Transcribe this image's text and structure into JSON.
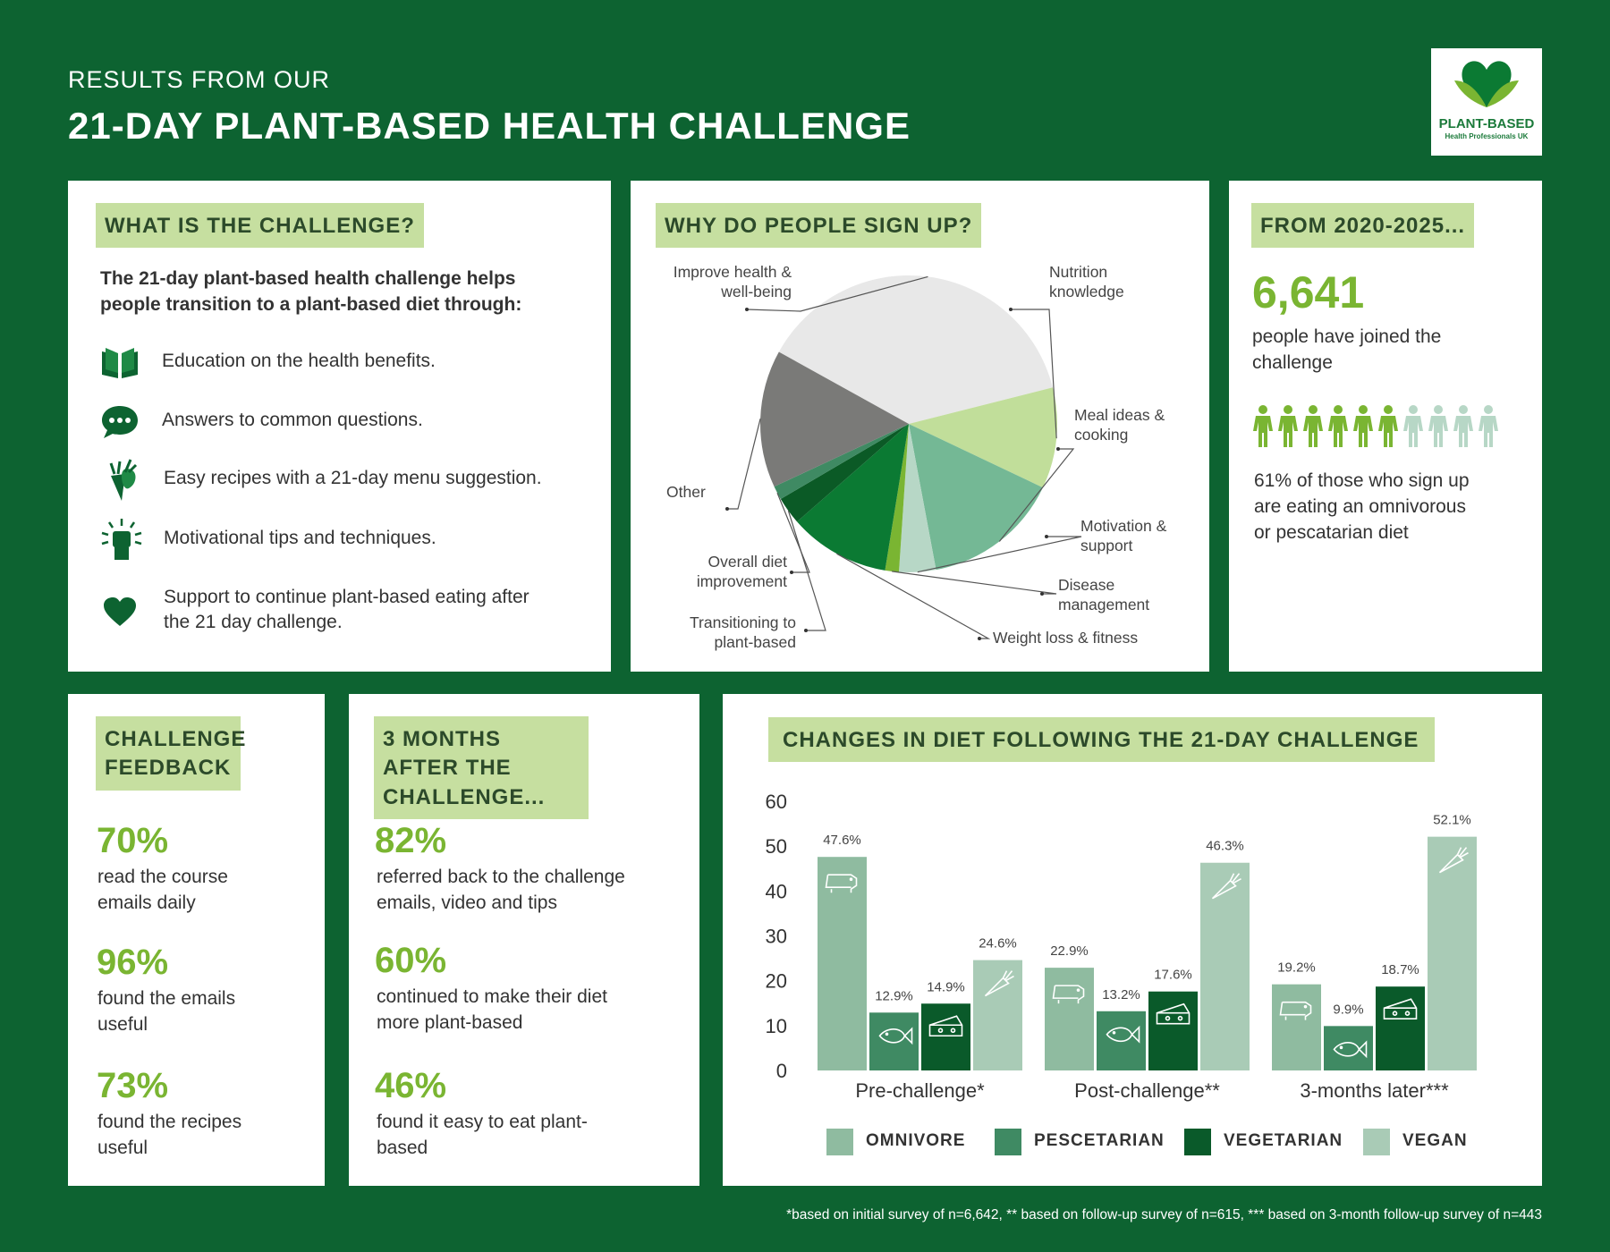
{
  "header": {
    "kicker": "RESULTS FROM OUR",
    "title": "21-DAY PLANT-BASED HEALTH CHALLENGE",
    "logo_title": "PLANT-BASED",
    "logo_subtitle": "Health Professionals UK"
  },
  "challenge": {
    "heading": "WHAT IS THE CHALLENGE?",
    "intro": "The 21-day plant-based health challenge helps people transition to a plant-based diet through:",
    "items": [
      {
        "icon": "book-icon",
        "text": "Education on the health benefits."
      },
      {
        "icon": "speech-bubble-icon",
        "text": "Answers to common questions."
      },
      {
        "icon": "vegetables-icon",
        "text": "Easy recipes with a 21-day menu suggestion."
      },
      {
        "icon": "raised-fist-icon",
        "text": "Motivational tips and techniques."
      },
      {
        "icon": "heart-icon",
        "text": "Support to continue plant-based eating after the 21 day challenge."
      }
    ]
  },
  "signup": {
    "heading": "WHY DO PEOPLE SIGN UP?"
  },
  "joined": {
    "heading": "FROM 2020-2025...",
    "count": "6,641",
    "count_text": "people have joined the challenge",
    "people_filled": 6,
    "people_total": 10,
    "stat_text": "61% of those who sign up are eating an omnivorous or pescatarian diet"
  },
  "feedback": {
    "heading": "CHALLENGE FEEDBACK",
    "stats": [
      {
        "value": "70%",
        "text": "read the course emails daily"
      },
      {
        "value": "96%",
        "text": "found the emails useful"
      },
      {
        "value": "73%",
        "text": "found the recipes useful"
      }
    ]
  },
  "after": {
    "heading": "3 MONTHS AFTER THE CHALLENGE...",
    "stats": [
      {
        "value": "82%",
        "text": "referred back to the challenge emails, video and tips"
      },
      {
        "value": "60%",
        "text": "continued to make their diet more plant-based"
      },
      {
        "value": "46%",
        "text": "found it easy to eat plant-based"
      }
    ]
  },
  "diet": {
    "heading": "CHANGES IN DIET FOLLOWING THE 21-DAY CHALLENGE"
  },
  "footnote": "*based on initial survey of n=6,642, ** based on follow-up survey of n=615,  *** based on 3-month follow-up survey of n=443",
  "colors": {
    "background": "#0d6331",
    "accent": "#7ab532",
    "tag": "#c6dfa0",
    "omnivore": "#8fbba0",
    "pescatarian": "#3f8a63",
    "vegetarian": "#0a5a2a",
    "vegan": "#a9cbb6"
  },
  "chart_data": [
    {
      "type": "pie",
      "categories": [
        "Improve health & well-being",
        "Nutrition knowledge",
        "Meal ideas & cooking",
        "Motivation & support",
        "Disease management",
        "Weight loss & fitness",
        "Transitioning to plant-based",
        "Overall diet improvement",
        "Other"
      ],
      "values": [
        38,
        11,
        15,
        4,
        1.5,
        11,
        3,
        1.5,
        15
      ],
      "colors": [
        "#e8e8e8",
        "#c1de9a",
        "#74b895",
        "#b7d7c6",
        "#7ab532",
        "#0b7a33",
        "#0b5a26",
        "#3f8a63",
        "#7a7a78"
      ]
    },
    {
      "type": "bar",
      "categories": [
        "Pre-challenge*",
        "Post-challenge**",
        "3-months later***"
      ],
      "series": [
        {
          "name": "OMNIVORE",
          "values": [
            47.6,
            22.9,
            19.2
          ],
          "labels": [
            "47.6%",
            "22.9%",
            "19.2%"
          ],
          "icon": "pig-icon"
        },
        {
          "name": "PESCETARIAN",
          "values": [
            12.9,
            13.2,
            9.9
          ],
          "labels": [
            "12.9%",
            "13.2%",
            "9.9%"
          ],
          "icon": "fish-icon"
        },
        {
          "name": "VEGETARIAN",
          "values": [
            14.9,
            17.6,
            18.7
          ],
          "labels": [
            "14.9%",
            "17.6%",
            "18.7%"
          ],
          "icon": "cheese-icon"
        },
        {
          "name": "VEGAN",
          "values": [
            24.6,
            46.3,
            52.1
          ],
          "labels": [
            "24.6%",
            "46.3%",
            "52.1%"
          ],
          "icon": "carrot-icon"
        }
      ],
      "ylim": [
        0,
        60
      ],
      "yticks": [
        "0",
        "10",
        "20",
        "30",
        "40",
        "50",
        "60"
      ],
      "legend": "bottom",
      "grid": false
    }
  ]
}
